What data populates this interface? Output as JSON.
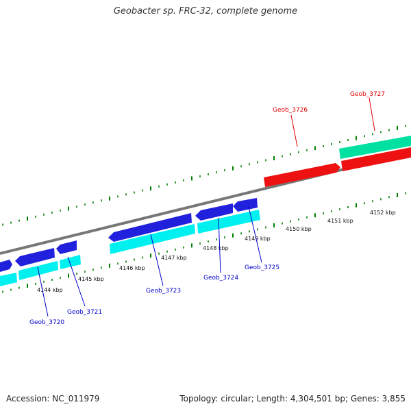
{
  "title": "Geobacter sp. FRC-32, complete genome",
  "footer": {
    "accession": "Accession: NC_011979",
    "summary": "Topology: circular; Length: 4,304,501 bp; Genes: 3,855"
  },
  "colors": {
    "backbone": "#777777",
    "tick": "#008000",
    "forward_gene": "#2020dd",
    "forward_cds": "#00f0f0",
    "reverse_gene": "#ee1111",
    "reverse_cds": "#00e0a0",
    "label_forward": "#0000cc",
    "label_reverse": "#dd0000"
  },
  "kbp_labels": [
    "4144 kbp",
    "4145 kbp",
    "4146 kbp",
    "4147 kbp",
    "4148 kbp",
    "4149 kbp",
    "4150 kbp",
    "4151 kbp",
    "4152 kbp"
  ],
  "gene_labels": [
    "Geob_3720",
    "Geob_3721",
    "Geob_3723",
    "Geob_3724",
    "Geob_3725",
    "Geob_3726",
    "Geob_3727"
  ]
}
